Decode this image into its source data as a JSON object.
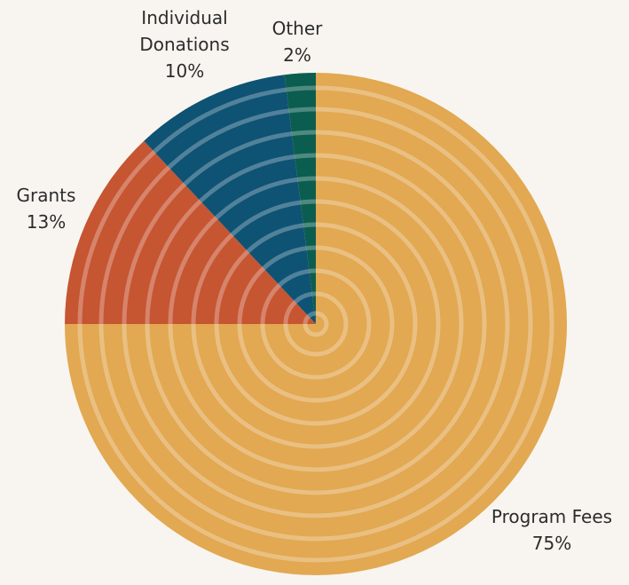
{
  "chart_data": {
    "type": "pie",
    "categories": [
      "Program Fees",
      "Grants",
      "Individual Donations",
      "Other"
    ],
    "values": [
      75,
      13,
      10,
      2
    ],
    "value_labels": [
      "75%",
      "13%",
      "10%",
      "2%"
    ],
    "colors": [
      "#e2a852",
      "#c65532",
      "#0e5274",
      "#0b5e4f"
    ]
  }
}
